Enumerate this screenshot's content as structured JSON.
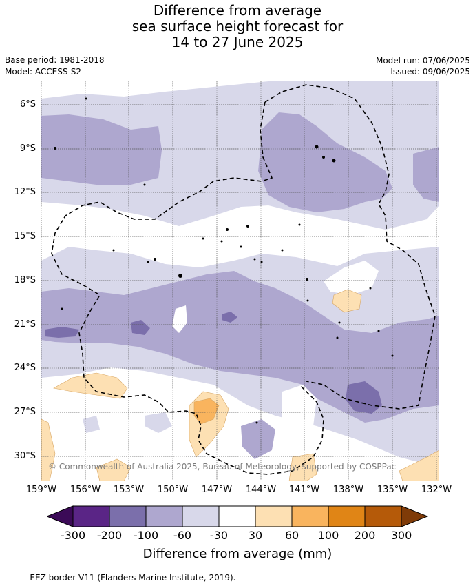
{
  "title": {
    "line1": "Difference from average",
    "line2": "sea surface height forecast for",
    "line3": "14 to 27 June 2025"
  },
  "meta": {
    "base_period": "Base period: 1981-2018",
    "model": "Model: ACCESS-S2",
    "model_run": "Model run: 07/06/2025",
    "issued": "Issued: 09/06/2025"
  },
  "map": {
    "lat_ticks": [
      "6°S",
      "9°S",
      "12°S",
      "15°S",
      "18°S",
      "21°S",
      "24°S",
      "27°S",
      "30°S"
    ],
    "lon_ticks": [
      "159°W",
      "156°W",
      "153°W",
      "150°W",
      "147°W",
      "144°W",
      "141°W",
      "138°W",
      "135°W",
      "132°W"
    ],
    "copyright": "© Commonwealth of Australia 2025, Bureau of Meteorology, supported by COSPPac"
  },
  "colorbar": {
    "ticks": [
      "-300",
      "-200",
      "-100",
      "-60",
      "-30",
      "30",
      "60",
      "100",
      "200",
      "300"
    ],
    "title": "Difference from average (mm)",
    "colors": [
      "#3b0a57",
      "#5a2586",
      "#7b6fab",
      "#aea7cf",
      "#d8d8ea",
      "#ffffff",
      "#fde0b3",
      "#f9b45e",
      "#e08516",
      "#b55a09",
      "#7f3b08"
    ]
  },
  "legend": {
    "eez_label": "--  --  -- EEZ border V11 (Flanders Marine Institute, 2019)."
  }
}
